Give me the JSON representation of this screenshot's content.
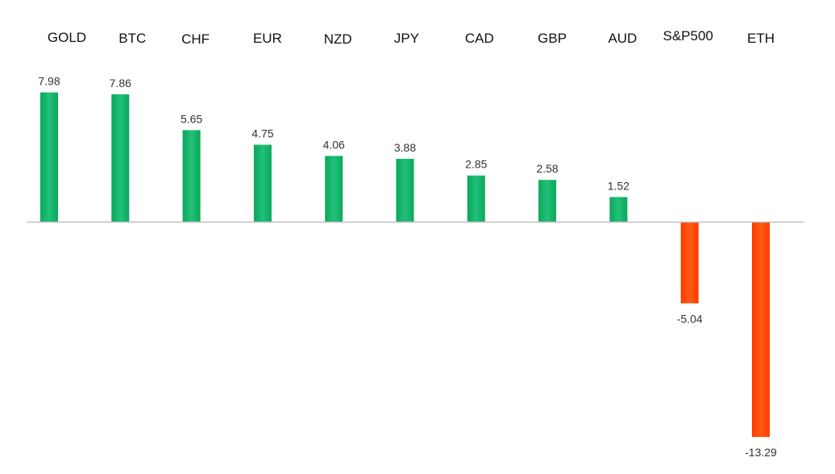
{
  "chart_data": {
    "type": "bar",
    "categories": [
      "GOLD",
      "BTC",
      "CHF",
      "EUR",
      "NZD",
      "JPY",
      "CAD",
      "GBP",
      "AUD",
      "S&P500",
      "ETH"
    ],
    "values": [
      7.98,
      7.86,
      5.65,
      4.75,
      4.06,
      3.88,
      2.85,
      2.58,
      1.52,
      -5.04,
      -13.29
    ],
    "value_labels": [
      "7.98",
      "7.86",
      "5.65",
      "4.75",
      "4.06",
      "3.88",
      "2.85",
      "2.58",
      "1.52",
      "-5.04",
      "-13.29"
    ],
    "title": "",
    "xlabel": "",
    "ylabel": "",
    "ylim": [
      -14,
      9
    ],
    "grid": false,
    "legend": "none",
    "category_label_position": "top",
    "colors": {
      "positive_top": "#22c07a",
      "positive_bottom": "#0aa85a",
      "negative_top": "#ff5a14",
      "negative_bottom": "#ff3a00",
      "axis": "#bfbfbf"
    }
  }
}
